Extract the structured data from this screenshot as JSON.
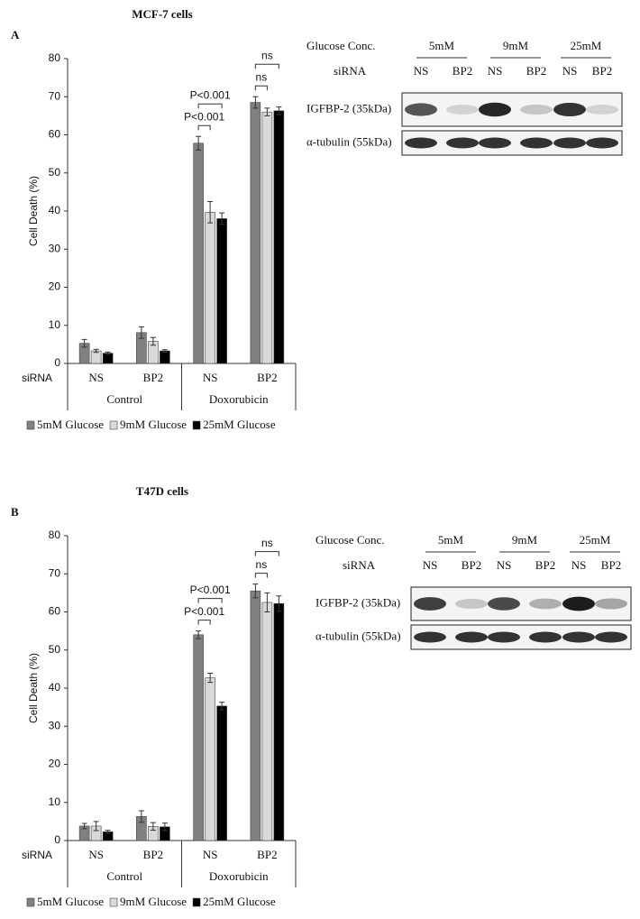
{
  "chart_data": [
    {
      "type": "bar",
      "panel": "A",
      "title": "MCF-7 cells",
      "ylabel": "Cell Death (%)",
      "category_label": "siRNA",
      "categories": [
        "NS",
        "BP2",
        "NS",
        "BP2"
      ],
      "groups": [
        "Control",
        "Doxorubicin"
      ],
      "ylim": [
        0,
        80
      ],
      "yticks": [
        0,
        10,
        20,
        30,
        40,
        50,
        60,
        70,
        80
      ],
      "series": [
        {
          "name": "5mM Glucose",
          "color": "#808080",
          "values": [
            5.3,
            8.1,
            57.8,
            68.5
          ],
          "errors": [
            1.0,
            1.5,
            1.8,
            1.5
          ]
        },
        {
          "name": "9mM Glucose",
          "color": "#d9d9d9",
          "values": [
            3.3,
            5.8,
            39.7,
            66.0
          ],
          "errors": [
            0.4,
            1.0,
            2.8,
            1.0
          ]
        },
        {
          "name": "25mM Glucose",
          "color": "#000000",
          "values": [
            2.7,
            3.3,
            38.0,
            66.3
          ],
          "errors": [
            0.3,
            0.3,
            1.5,
            1.0
          ]
        }
      ],
      "annotations": [
        "P<0.001",
        "P<0.001",
        "ns",
        "ns"
      ]
    },
    {
      "type": "bar",
      "panel": "B",
      "title": "T47D cells",
      "ylabel": "Cell Death (%)",
      "category_label": "siRNA",
      "categories": [
        "NS",
        "BP2",
        "NS",
        "BP2"
      ],
      "groups": [
        "Control",
        "Doxorubicin"
      ],
      "ylim": [
        0,
        80
      ],
      "yticks": [
        0,
        10,
        20,
        30,
        40,
        50,
        60,
        70,
        80
      ],
      "series": [
        {
          "name": "5mM Glucose",
          "color": "#808080",
          "values": [
            3.8,
            6.3,
            54.0,
            65.5
          ],
          "errors": [
            0.7,
            1.5,
            1.0,
            1.8
          ]
        },
        {
          "name": "9mM Glucose",
          "color": "#d9d9d9",
          "values": [
            3.8,
            3.7,
            42.7,
            62.5
          ],
          "errors": [
            1.2,
            1.0,
            1.2,
            2.5
          ]
        },
        {
          "name": "25mM Glucose",
          "color": "#000000",
          "values": [
            2.3,
            3.6,
            35.3,
            62.2
          ],
          "errors": [
            0.4,
            1.0,
            1.0,
            2.0
          ]
        }
      ],
      "annotations": [
        "P<0.001",
        "P<0.001",
        "ns",
        "ns"
      ]
    }
  ],
  "blots": [
    {
      "conc_label": "Glucose Conc.",
      "concs": [
        "5mM",
        "9mM",
        "25mM"
      ],
      "sirna_label": "siRNA",
      "lanes": [
        "NS",
        "BP2",
        "NS",
        "BP2",
        "NS",
        "BP2"
      ],
      "bands": [
        "IGFBP-2 (35kDa)",
        "α-tubulin (55kDa)"
      ]
    },
    {
      "conc_label": "Glucose Conc.",
      "concs": [
        "5mM",
        "9mM",
        "25mM"
      ],
      "sirna_label": "siRNA",
      "lanes": [
        "NS",
        "BP2",
        "NS",
        "BP2",
        "NS",
        "BP2"
      ],
      "bands": [
        "IGFBP-2 (35kDa)",
        "α-tubulin (55kDa)"
      ]
    }
  ]
}
